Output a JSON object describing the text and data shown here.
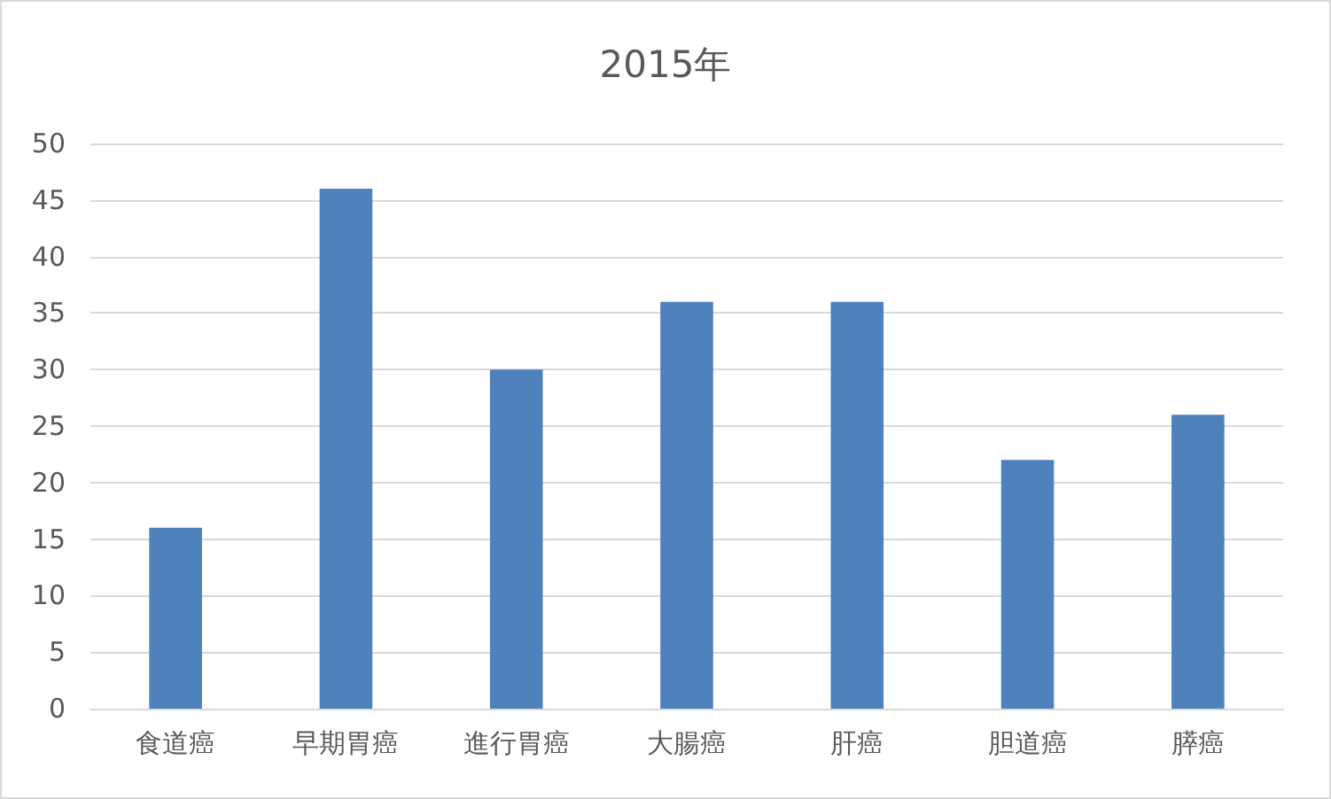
{
  "chart_data": {
    "type": "bar",
    "title": "2015年",
    "categories": [
      "食道癌",
      "早期胃癌",
      "進行胃癌",
      "大腸癌",
      "肝癌",
      "胆道癌",
      "膵癌"
    ],
    "values": [
      16,
      46,
      30,
      36,
      36,
      22,
      26
    ],
    "color": "#4f81bd",
    "ylim": [
      0,
      50
    ],
    "yticks": [
      0,
      5,
      10,
      15,
      20,
      25,
      30,
      35,
      40,
      45,
      50
    ],
    "grid": "y"
  }
}
